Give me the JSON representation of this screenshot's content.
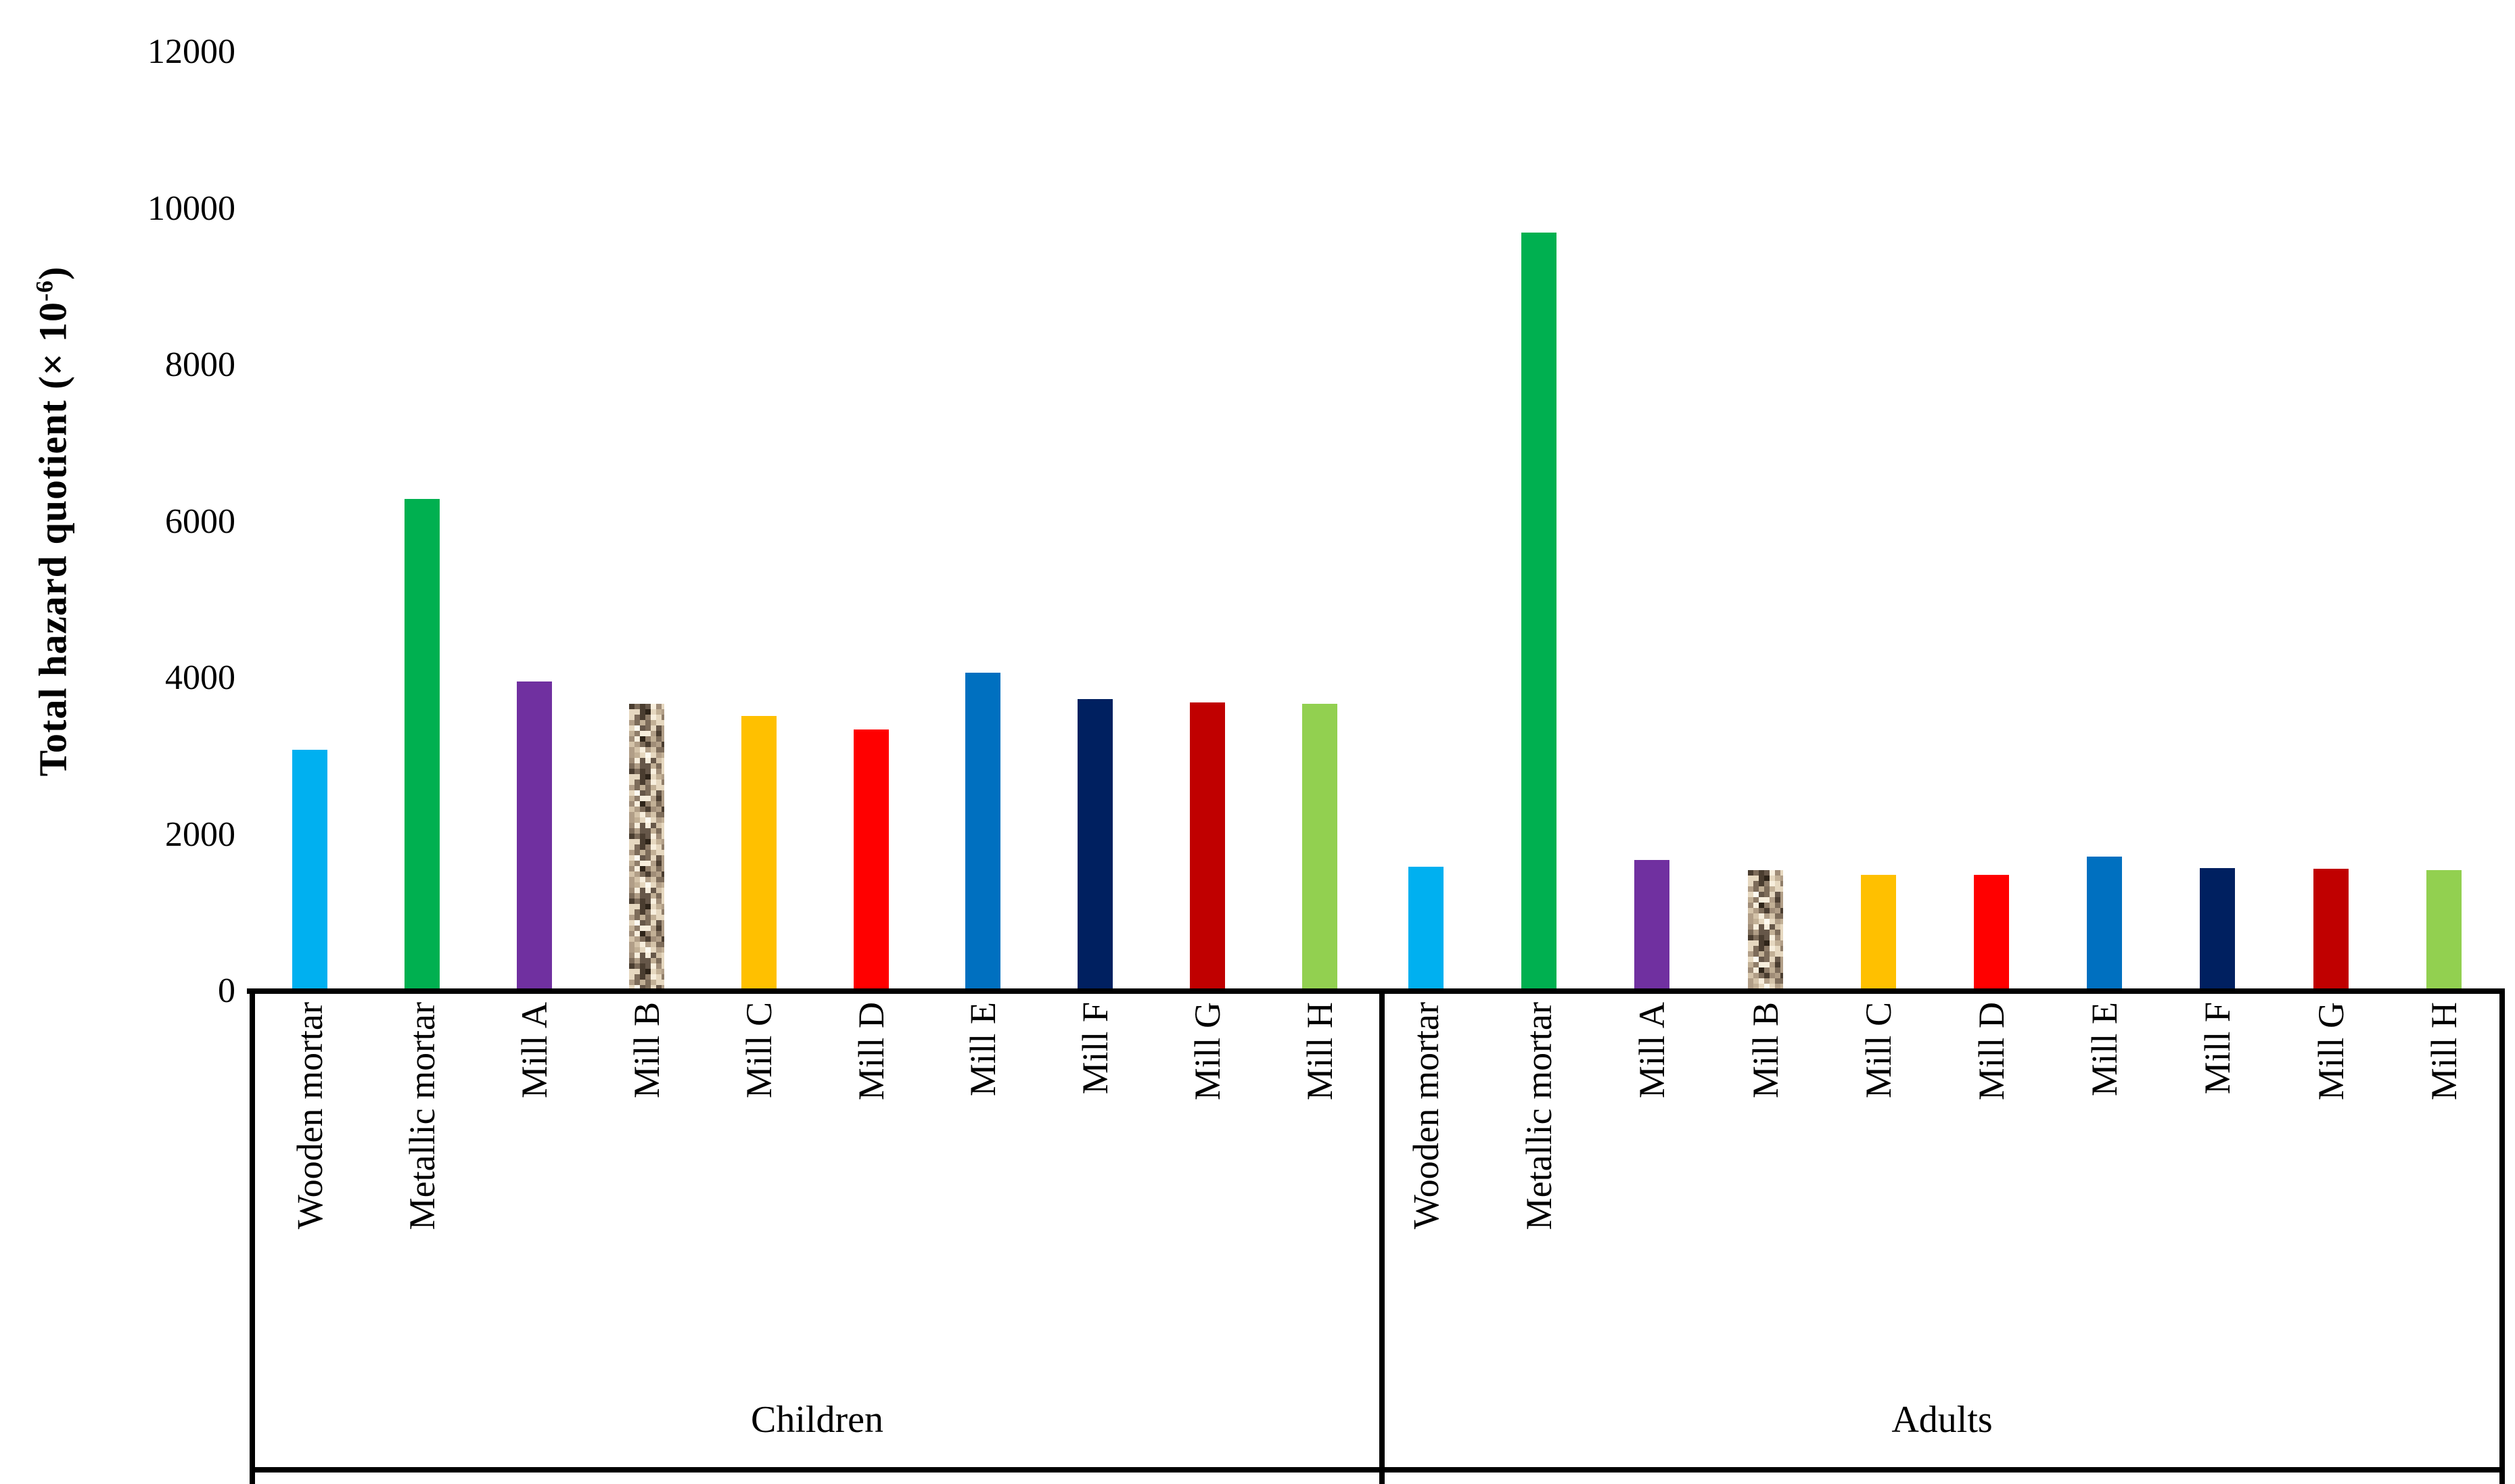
{
  "page": {
    "background": "#FFFFFF"
  },
  "chart_data": {
    "type": "bar",
    "title": "",
    "ylabel_full": "Total hazard quotient (× 10-6)",
    "ylabel_prefix": "Total hazard quotient (× 10",
    "ylabel_exponent": "-6",
    "ylabel_suffix": ")",
    "xlabel": "",
    "ylim": [
      0,
      12000
    ],
    "yticks": [
      0,
      2000,
      4000,
      6000,
      8000,
      10000,
      12000
    ],
    "grid": false,
    "legend": false,
    "categories": [
      "Wooden mortar",
      "Metallic mortar",
      "Mill A",
      "Mill B",
      "Mill C",
      "Mill D",
      "Mill E",
      "Mill F",
      "Mill G",
      "Mill H"
    ],
    "groups": [
      {
        "label": "Children",
        "values": [
          3080,
          6290,
          3960,
          3670,
          3520,
          3340,
          4070,
          3730,
          3690,
          3670
        ]
      },
      {
        "label": "Adults",
        "values": [
          1590,
          9690,
          1680,
          1550,
          1490,
          1490,
          1720,
          1570,
          1560,
          1550
        ]
      }
    ],
    "bar_fills": [
      "#00B0F0",
      "#00B050",
      "#7030A0",
      "speckle-pattern",
      "#FFC000",
      "#FF0000",
      "#0070C0",
      "#002060",
      "#C00000",
      "#92D050"
    ],
    "speckle_palette": [
      "#4a3d30",
      "#665749",
      "#7d6c5a",
      "#8f7d69",
      "#a08d78",
      "#b19e87",
      "#c2b096",
      "#d4c3a9",
      "#e6d8c0",
      "#f7eedd"
    ],
    "speckle_rare_dark": "#2e2419",
    "speckle_rare_light": "#fdfaf0",
    "axis_color": "#000000"
  }
}
